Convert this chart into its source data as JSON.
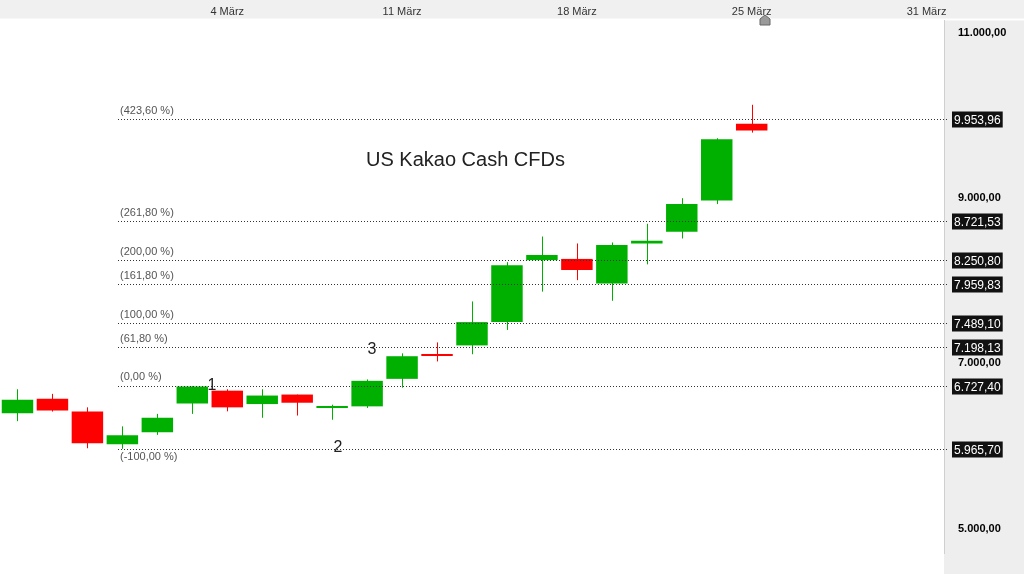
{
  "chart_data": {
    "type": "candlestick",
    "categories": [
      null,
      null,
      null,
      null,
      null,
      null,
      "4 März",
      null,
      null,
      null,
      null,
      "11 März",
      null,
      null,
      null,
      null,
      "18 März",
      null,
      null,
      null,
      null,
      "25 März",
      null,
      null,
      null,
      null,
      "31 März"
    ],
    "ohlc": [
      [
        6396,
        6687,
        6301,
        6559
      ],
      [
        6571,
        6631,
        6417,
        6429
      ],
      [
        6417,
        6468,
        5973,
        6032
      ],
      [
        6020,
        6238,
        5966,
        6131
      ],
      [
        6167,
        6389,
        6135,
        6342
      ],
      [
        6516,
        6727,
        6389,
        6720
      ],
      [
        6670,
        6687,
        6420,
        6468
      ],
      [
        6508,
        6687,
        6342,
        6611
      ],
      [
        6623,
        6623,
        6369,
        6524
      ],
      [
        6460,
        6500,
        6318,
        6470
      ],
      [
        6480,
        6806,
        6461,
        6789
      ],
      [
        6813,
        7122,
        6706,
        7087
      ],
      [
        7100,
        7254,
        7024,
        7090
      ],
      [
        7218,
        7750,
        7111,
        7500
      ],
      [
        7500,
        8226,
        7405,
        8187
      ],
      [
        8250,
        8536,
        7869,
        8313
      ],
      [
        8265,
        8452,
        8008,
        8131
      ],
      [
        7968,
        8464,
        7758,
        8432
      ],
      [
        8452,
        8690,
        8199,
        8484
      ],
      [
        8595,
        9000,
        8512,
        8929
      ],
      [
        8973,
        9726,
        8929,
        9714
      ],
      [
        9901,
        10131,
        9794,
        9821
      ],
      null,
      null,
      null,
      null,
      null
    ],
    "colors": [
      "#00b000",
      "#ff0000",
      "#ff0000",
      "#00b000",
      "#00b000",
      "#00b000",
      "#ff0000",
      "#00b000",
      "#ff0000",
      "#00b000",
      "#00b000",
      "#00b000",
      "#ff0000",
      "#00b000",
      "#00b000",
      "#00b000",
      "#ff0000",
      "#00b000",
      "#00b000",
      "#00b000",
      "#00b000",
      "#ff0000",
      null,
      null,
      null,
      null,
      null
    ],
    "ylim": [
      4700,
      11150
    ],
    "yticks": [
      {
        "value": 5000,
        "label": "5.000,00"
      },
      {
        "value": 7000,
        "label": "7.000,00"
      },
      {
        "value": 9000,
        "label": "9.000,00"
      },
      {
        "value": 11000,
        "label": "11.000,00"
      }
    ],
    "ref_lines": [
      {
        "axis": "y",
        "value": 9953.96,
        "label": "9.953,96"
      },
      {
        "axis": "y",
        "value": 8721.53,
        "label": "8.721,53"
      },
      {
        "axis": "y",
        "value": 8250.8,
        "label": "8.250,80"
      },
      {
        "axis": "y",
        "value": 7959.83,
        "label": "7.959,83"
      },
      {
        "axis": "y",
        "value": 7489.1,
        "label": "7.489,10"
      },
      {
        "axis": "y",
        "value": 7198.13,
        "label": "7.198,13"
      },
      {
        "axis": "y",
        "value": 6727.4,
        "label": "6.727,40"
      },
      {
        "axis": "y",
        "value": 5965.7,
        "label": "5.965,70"
      }
    ],
    "annotations": [
      "US Kakao Cash CFDs",
      "1",
      "2",
      "3",
      {
        "text": "(423,60 %)",
        "y": 9953.96
      },
      {
        "text": "(261,80 %)",
        "y": 8721.53
      },
      {
        "text": "(200,00 %)",
        "y": 8250.8
      },
      {
        "text": "(161,80 %)",
        "y": 7959.83
      },
      {
        "text": "(100,00 %)",
        "y": 7489.1
      },
      {
        "text": "(61,80 %)",
        "y": 7198.13
      },
      {
        "text": "(0,00 %)",
        "y": 6727.4
      },
      {
        "text": "(-100,00 %)",
        "y": 5965.7
      }
    ],
    "grid": false,
    "legend": false
  }
}
